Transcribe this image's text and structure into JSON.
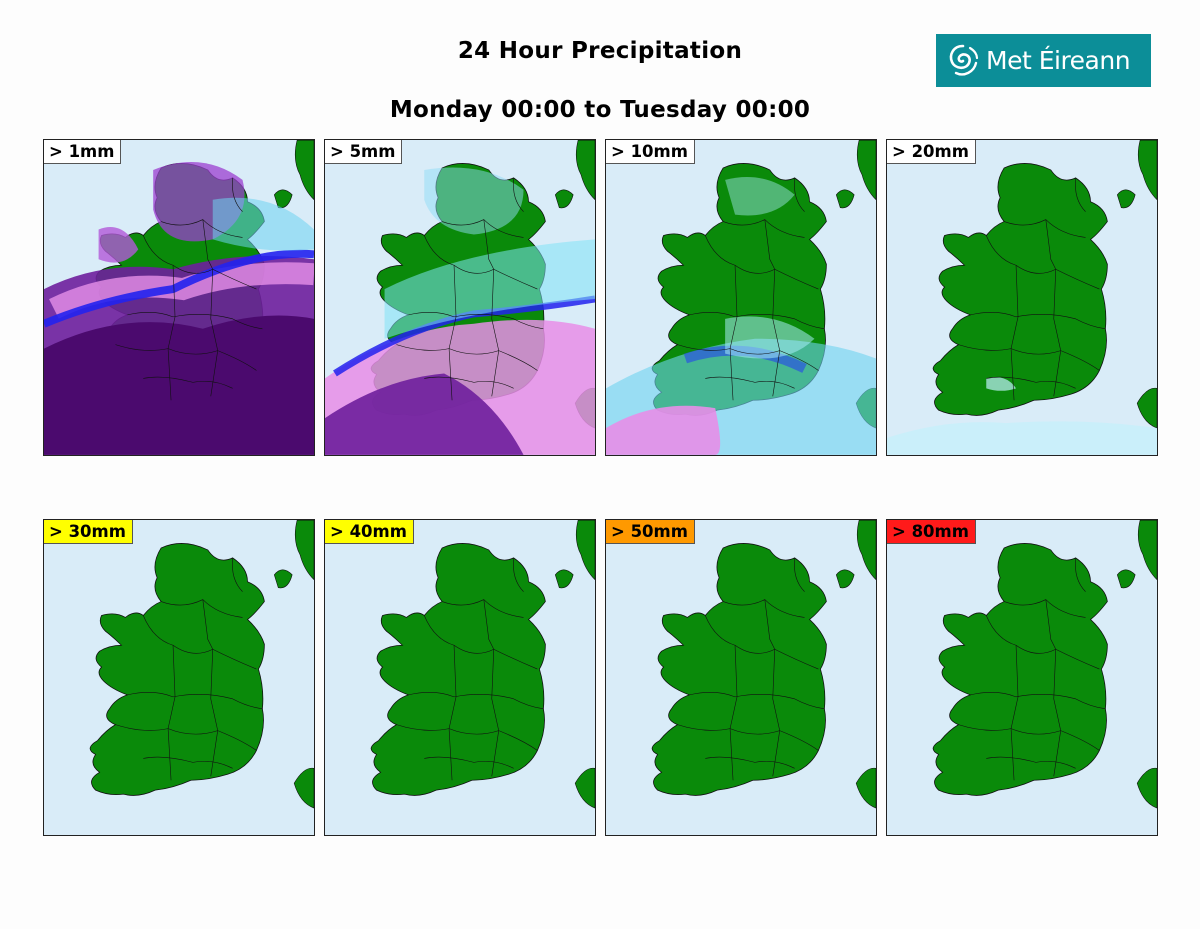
{
  "header": {
    "title": "24 Hour Precipitation",
    "subtitle": "Monday 00:00 to Tuesday 00:00"
  },
  "logo": {
    "text": "Met Éireann",
    "icon": "swirl-icon",
    "background": "#0c8e98"
  },
  "colors": {
    "sea": "#d9ecf8",
    "land": "#0a8a0a",
    "badge_default": "#ffffff",
    "badge_yellow": "#ffff00",
    "badge_orange": "#ff9900",
    "badge_red": "#ff1a1a"
  },
  "panels": [
    {
      "label": "> 1mm",
      "badge_color": "#ffffff",
      "rain_level": "very heavy coverage"
    },
    {
      "label": "> 5mm",
      "badge_color": "#ffffff",
      "rain_level": "heavy coverage in south"
    },
    {
      "label": "> 10mm",
      "badge_color": "#ffffff",
      "rain_level": "moderate coverage in south"
    },
    {
      "label": "> 20mm",
      "badge_color": "#ffffff",
      "rain_level": "light coverage"
    },
    {
      "label": "> 30mm",
      "badge_color": "#ffff00",
      "rain_level": "none"
    },
    {
      "label": "> 40mm",
      "badge_color": "#ffff00",
      "rain_level": "none"
    },
    {
      "label": "> 50mm",
      "badge_color": "#ff9900",
      "rain_level": "none"
    },
    {
      "label": "> 80mm",
      "badge_color": "#ff1a1a",
      "rain_level": "none"
    }
  ]
}
